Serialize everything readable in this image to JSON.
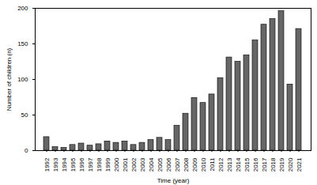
{
  "chart_data": {
    "type": "bar",
    "x_label": "Time (year)",
    "y_label": "Number of children (n)",
    "categories": [
      "1992",
      "1993",
      "1994",
      "1995",
      "1996",
      "1997",
      "1998",
      "1999",
      "2000",
      "2001",
      "2002",
      "2003",
      "2004",
      "2005",
      "2006",
      "2007",
      "2008",
      "2009",
      "2010",
      "2011",
      "2012",
      "2013",
      "2014",
      "2015",
      "2016",
      "2017",
      "2018",
      "2019",
      "2020",
      "2021"
    ],
    "values": [
      19,
      5,
      4,
      8,
      10,
      7,
      9,
      13,
      11,
      13,
      8,
      11,
      15,
      18,
      15,
      35,
      52,
      74,
      67,
      79,
      102,
      131,
      125,
      134,
      155,
      177,
      185,
      196,
      93,
      171
    ],
    "color": "#666666",
    "ylim": [
      0,
      200
    ],
    "yticks": [
      0,
      50,
      100,
      150,
      200
    ],
    "grid": false
  }
}
